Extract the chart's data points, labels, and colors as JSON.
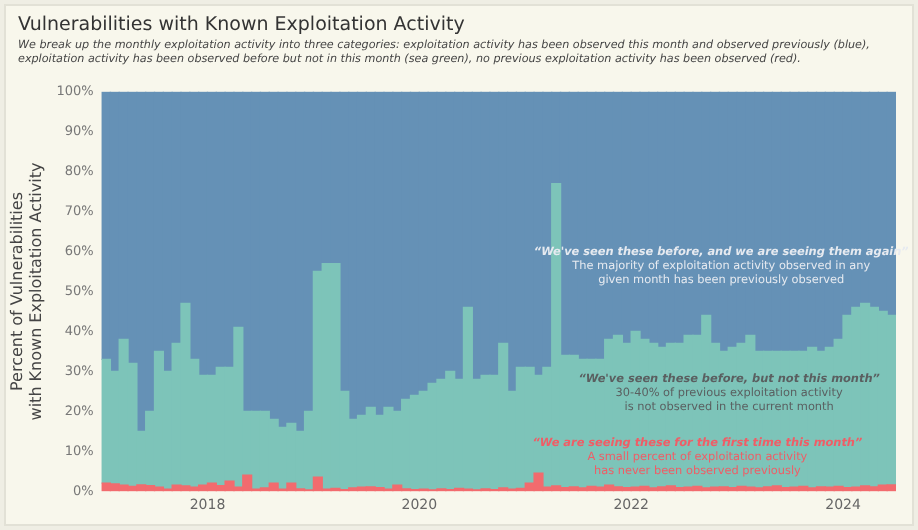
{
  "chart_data": {
    "type": "bar",
    "stacked": true,
    "title": "Vulnerabilities with Known Exploitation Activity",
    "subtitle": "We break up the monthly exploitation activity into three categories: exploitation activity has been observed this month and observed previously (blue), exploitation activity has been observed before but not in this month (sea green), no previous exploitation activity has been observed (red).",
    "ylabel": "Percent of Vulnerabilities\nwith Known Exploitation Activity",
    "x": [
      "2017-01",
      "2017-02",
      "2017-03",
      "2017-04",
      "2017-05",
      "2017-06",
      "2017-07",
      "2017-08",
      "2017-09",
      "2017-10",
      "2017-11",
      "2017-12",
      "2018-01",
      "2018-02",
      "2018-03",
      "2018-04",
      "2018-05",
      "2018-06",
      "2018-07",
      "2018-08",
      "2018-09",
      "2018-10",
      "2018-11",
      "2018-12",
      "2019-01",
      "2019-02",
      "2019-03",
      "2019-04",
      "2019-05",
      "2019-06",
      "2019-07",
      "2019-08",
      "2019-09",
      "2019-10",
      "2019-11",
      "2019-12",
      "2020-01",
      "2020-02",
      "2020-03",
      "2020-04",
      "2020-05",
      "2020-06",
      "2020-07",
      "2020-08",
      "2020-09",
      "2020-10",
      "2020-11",
      "2020-12",
      "2021-01",
      "2021-02",
      "2021-03",
      "2021-04",
      "2021-05",
      "2021-06",
      "2021-07",
      "2021-08",
      "2021-09",
      "2021-10",
      "2021-11",
      "2021-12",
      "2022-01",
      "2022-02",
      "2022-03",
      "2022-04",
      "2022-05",
      "2022-06",
      "2022-07",
      "2022-08",
      "2022-09",
      "2022-10",
      "2022-11",
      "2022-12",
      "2023-01",
      "2023-02",
      "2023-03",
      "2023-04",
      "2023-05",
      "2023-06",
      "2023-07",
      "2023-08",
      "2023-09",
      "2023-10",
      "2023-11",
      "2023-12",
      "2024-01",
      "2024-02",
      "2024-03",
      "2024-04",
      "2024-05",
      "2024-06"
    ],
    "series": [
      {
        "color": "#f26b6e",
        "values": [
          2,
          1.8,
          1.5,
          1.2,
          1.6,
          1.4,
          1,
          0.5,
          1.5,
          1.3,
          1,
          1.5,
          2,
          1.4,
          2.5,
          1,
          4,
          0.5,
          0.8,
          2,
          0.5,
          2,
          0.6,
          0.3,
          3.5,
          0.5,
          0.7,
          0.4,
          0.8,
          1,
          1.1,
          0.9,
          0.5,
          1.5,
          0.6,
          0.4,
          0.5,
          0.3,
          0.6,
          0.4,
          0.7,
          0.5,
          0.3,
          0.6,
          0.4,
          0.8,
          0.5,
          0.7,
          2,
          4.5,
          1,
          1.3,
          0.9,
          1.1,
          0.8,
          1.2,
          1,
          1.5,
          1.1,
          0.9,
          1,
          1.2,
          0.8,
          1.1,
          1.3,
          0.9,
          1,
          1.2,
          0.8,
          1,
          1.1,
          0.9,
          1.2,
          1,
          0.8,
          1.1,
          1.3,
          0.9,
          1,
          1.2,
          0.8,
          1.1,
          1,
          1.2,
          0.9,
          1,
          1.3,
          1.1,
          1.5,
          1.6
        ]
      },
      {
        "color": "#7dc4b9",
        "values": [
          31,
          28.2,
          36.5,
          30.8,
          13.4,
          18.6,
          34,
          29.5,
          35.5,
          45.7,
          32,
          27.5,
          27,
          29.6,
          28.5,
          40,
          16,
          19.5,
          19.2,
          16,
          15.5,
          15,
          14.4,
          19.7,
          51.5,
          56.5,
          56.3,
          24.6,
          17.2,
          18,
          19.9,
          18.1,
          20.5,
          18.5,
          22.4,
          23.6,
          24.5,
          26.7,
          27.4,
          29.6,
          27.3,
          45.5,
          27.7,
          28.4,
          28.6,
          36.2,
          24.5,
          30.3,
          29,
          24.5,
          30,
          75.7,
          33.1,
          32.9,
          32.2,
          31.8,
          32,
          36.5,
          37.9,
          36.1,
          39,
          36.8,
          36.2,
          34.9,
          35.7,
          36.1,
          38,
          37.8,
          43.2,
          36,
          33.9,
          35.1,
          35.8,
          38,
          34.2,
          33.9,
          33.7,
          34.1,
          34,
          33.8,
          35.2,
          33.9,
          35,
          36.8,
          43.1,
          45,
          45.7,
          44.9,
          43.5,
          42.4
        ]
      },
      {
        "color": "#6591b6",
        "values": [
          67,
          70,
          62,
          68,
          85,
          80,
          65,
          70,
          63,
          53,
          67,
          71,
          71,
          69,
          69,
          59,
          80,
          80,
          80,
          82,
          84,
          83,
          85,
          80,
          45,
          43,
          43,
          75,
          82,
          81,
          79,
          81,
          79,
          80,
          77,
          76,
          75,
          73,
          72,
          70,
          72,
          54,
          72,
          71,
          71,
          63,
          75,
          69,
          69,
          71,
          69,
          23,
          66,
          66,
          67,
          67,
          67,
          62,
          61,
          63,
          60,
          62,
          63,
          64,
          63,
          63,
          61,
          61,
          56,
          63,
          65,
          64,
          63,
          61,
          65,
          65,
          65,
          65,
          65,
          65,
          64,
          65,
          64,
          62,
          56,
          54,
          53,
          54,
          55,
          56
        ]
      }
    ],
    "xlim": [
      "2017-01",
      "2024-07"
    ],
    "xticks": [
      "2018",
      "2020",
      "2022",
      "2024"
    ],
    "ylim": [
      0,
      100
    ],
    "yticks": [
      {
        "value": 0,
        "label": "0%"
      },
      {
        "value": 10,
        "label": "10%"
      },
      {
        "value": 20,
        "label": "20%"
      },
      {
        "value": 30,
        "label": "30%"
      },
      {
        "value": 40,
        "label": "40%"
      },
      {
        "value": 50,
        "label": "50%"
      },
      {
        "value": 60,
        "label": "60%"
      },
      {
        "value": 70,
        "label": "70%"
      },
      {
        "value": 80,
        "label": "80%"
      },
      {
        "value": 90,
        "label": "90%"
      },
      {
        "value": 100,
        "label": "100%"
      }
    ],
    "grid": false,
    "legend": false,
    "annotations": [
      "“We've seen these before, and we are seeing them again”\nThe majority of exploitation activity observed in any\ngiven month has been previously observed",
      "“We've seen these before, but not this month”\n30-40% of previous exploitation activity\nis not observed in the current month",
      "“We are seeing these for the first time this month”\nA small percent of exploitation activity\nhas never been observed previously"
    ]
  }
}
